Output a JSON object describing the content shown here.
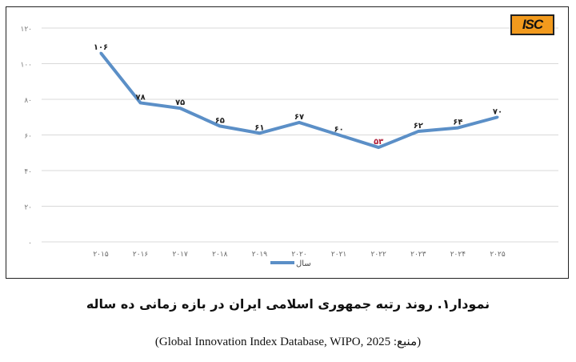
{
  "chart_data": {
    "type": "line",
    "categories": [
      "2015",
      "2016",
      "2017",
      "2018",
      "2019",
      "2020",
      "2021",
      "2022",
      "2023",
      "2024",
      "2025"
    ],
    "category_labels": [
      "۲۰۱۵",
      "۲۰۱۶",
      "۲۰۱۷",
      "۲۰۱۸",
      "۲۰۱۹",
      "۲۰۲۰",
      "۲۰۲۱",
      "۲۰۲۲",
      "۲۰۲۳",
      "۲۰۲۴",
      "۲۰۲۵"
    ],
    "series": [
      {
        "name": "سال",
        "values": [
          106,
          78,
          75,
          65,
          61,
          67,
          60,
          53,
          62,
          64,
          70
        ],
        "color": "#5b8fc7"
      }
    ],
    "data_labels": [
      "۱۰۶",
      "۷۸",
      "۷۵",
      "۶۵",
      "۶۱",
      "۶۷",
      "۶۰",
      "۵۳",
      "۶۲",
      "۶۴",
      "۷۰"
    ],
    "highlight_label_color": "#b0203a",
    "highlight_index": 7,
    "ylim": [
      0,
      120
    ],
    "yticks": [
      0,
      20,
      40,
      60,
      80,
      100,
      120
    ],
    "ytick_labels": [
      "۰",
      "۲۰",
      "۴۰",
      "۶۰",
      "۸۰",
      "۱۰۰",
      "۱۲۰"
    ],
    "grid": true,
    "legend": "bottom",
    "title": ""
  },
  "logo": {
    "text": "ISC",
    "color": "#f29a1d"
  },
  "caption": "نمودار۱. روند رتبه جمهوری اسلامی ایران در بازه زمانی ده ساله",
  "source": "(منبع: Global Innovation Index Database, WIPO, 2025)"
}
